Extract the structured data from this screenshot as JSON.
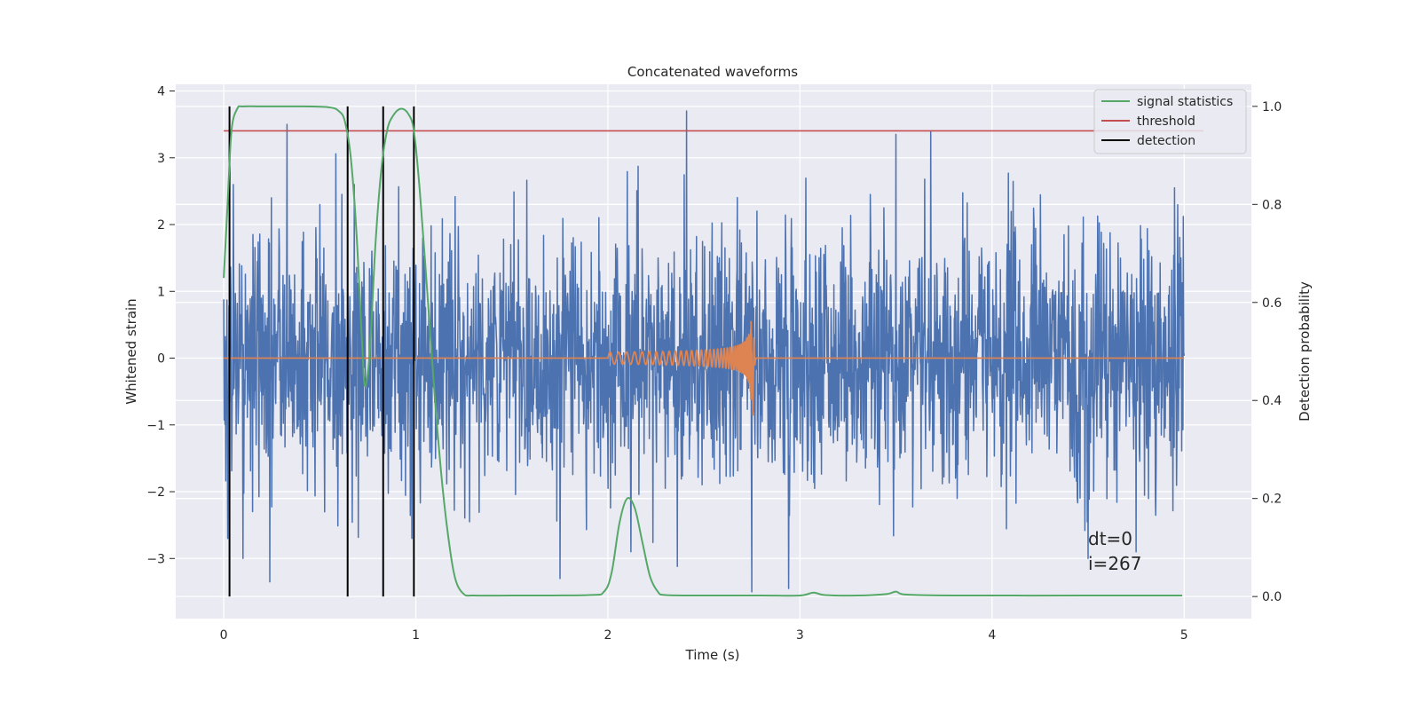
{
  "chart_data": {
    "type": "line",
    "title": "Concatenated waveforms",
    "xlabel": "Time (s)",
    "ylabel": "Whitened strain",
    "y2label": "Detection probability",
    "xlim": [
      -0.25,
      5.35
    ],
    "ylim": [
      -3.9,
      4.1
    ],
    "y2lim": [
      -0.045,
      1.045
    ],
    "xticks": [
      "0",
      "1",
      "2",
      "3",
      "4",
      "5"
    ],
    "yticks": [
      "4",
      "3",
      "2",
      "1",
      "0",
      "−1",
      "−2",
      "−3"
    ],
    "y2ticks": [
      "1.0",
      "0.8",
      "0.6",
      "0.4",
      "0.2",
      "0.0"
    ],
    "grid": true,
    "background": "#eaeaf2",
    "legend_position": "top-right",
    "legend": [
      {
        "label": "signal statistics",
        "color": "#55a868"
      },
      {
        "label": "threshold",
        "color": "#c44e52"
      },
      {
        "label": "detection",
        "color": "#000000"
      }
    ],
    "annotations": [
      "dt=0",
      "i=267"
    ],
    "series": [
      {
        "role": "whitened-strain-noise",
        "axis": "left",
        "color": "#4c72b0",
        "x_range": [
          0,
          5
        ],
        "typical_range": [
          -1.5,
          1.5
        ],
        "peaks": [
          {
            "x": 0.02,
            "y": -2.7
          },
          {
            "x": 0.05,
            "y": 2.6
          },
          {
            "x": 0.1,
            "y": -3.0
          },
          {
            "x": 0.24,
            "y": -3.35
          },
          {
            "x": 0.33,
            "y": 3.5
          },
          {
            "x": 0.5,
            "y": 2.3
          },
          {
            "x": 0.68,
            "y": 2.6
          },
          {
            "x": 0.98,
            "y": -2.7
          },
          {
            "x": 1.75,
            "y": -3.3
          },
          {
            "x": 2.12,
            "y": -2.9
          },
          {
            "x": 2.41,
            "y": 3.7
          },
          {
            "x": 2.75,
            "y": -3.55
          },
          {
            "x": 2.94,
            "y": -3.45
          },
          {
            "x": 3.5,
            "y": 3.35
          },
          {
            "x": 3.68,
            "y": 3.4
          },
          {
            "x": 4.5,
            "y": -3.0
          },
          {
            "x": 4.75,
            "y": -2.9
          },
          {
            "x": 4.95,
            "y": 2.55
          }
        ]
      },
      {
        "role": "injected-chirp-waveform",
        "axis": "left",
        "color": "#dd8452",
        "flat_ranges": [
          [
            0,
            2.0
          ],
          [
            2.77,
            5.0
          ]
        ],
        "chirp_start": 2.0,
        "chirp_merger": 2.75,
        "start_amplitude": 0.05,
        "peak_amplitude": 0.75,
        "min_at_merger": -0.85
      },
      {
        "name": "signal statistics",
        "axis": "right",
        "color": "#55a868",
        "x": [
          0,
          0.02,
          0.04,
          0.07,
          0.1,
          0.2,
          0.4,
          0.55,
          0.6,
          0.63,
          0.66,
          0.69,
          0.72,
          0.735,
          0.76,
          0.79,
          0.82,
          0.85,
          0.88,
          0.92,
          0.96,
          0.99,
          1.02,
          1.06,
          1.1,
          1.14,
          1.18,
          1.21,
          1.25,
          1.3,
          1.5,
          1.9,
          1.98,
          2.02,
          2.06,
          2.1,
          2.14,
          2.18,
          2.22,
          2.26,
          2.3,
          2.5,
          2.8,
          3.0,
          3.07,
          3.13,
          3.3,
          3.45,
          3.5,
          3.55,
          3.8,
          4.5,
          4.99
        ],
        "y": [
          0.65,
          0.8,
          0.95,
          0.995,
          1.0,
          1.0,
          1.0,
          0.998,
          0.99,
          0.97,
          0.9,
          0.75,
          0.52,
          0.43,
          0.5,
          0.72,
          0.87,
          0.95,
          0.98,
          0.995,
          0.985,
          0.95,
          0.83,
          0.62,
          0.4,
          0.22,
          0.09,
          0.03,
          0.005,
          0.002,
          0.002,
          0.003,
          0.01,
          0.05,
          0.15,
          0.2,
          0.18,
          0.11,
          0.04,
          0.01,
          0.003,
          0.002,
          0.002,
          0.002,
          0.008,
          0.003,
          0.002,
          0.005,
          0.01,
          0.004,
          0.002,
          0.002,
          0.002
        ]
      },
      {
        "name": "threshold",
        "axis": "right",
        "color": "#c44e52",
        "x": [
          0,
          5.1
        ],
        "y": [
          0.95,
          0.95
        ]
      }
    ],
    "detections": {
      "color": "#000000",
      "axis": "right",
      "x": [
        0.03,
        0.645,
        0.83,
        0.99
      ],
      "y_from": 0.0,
      "y_to": 1.0
    }
  }
}
